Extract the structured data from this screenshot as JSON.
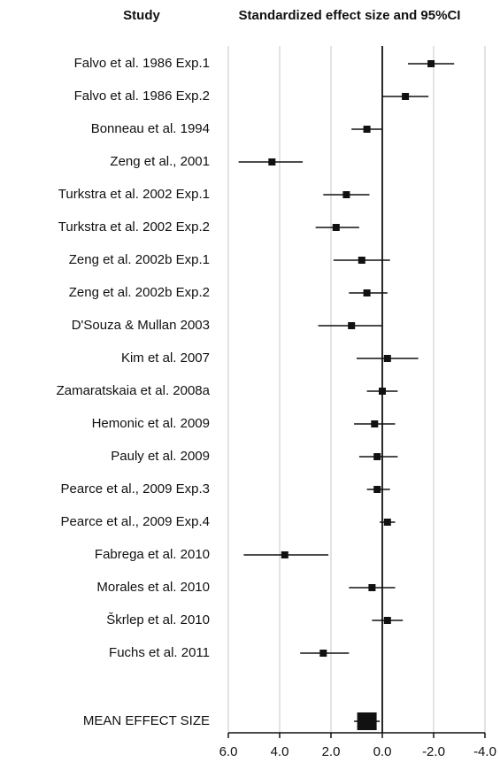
{
  "chart_data": {
    "type": "forest",
    "x_header": "Standardized effect size and 95%CI",
    "y_header": "Study",
    "categories": [
      "Falvo et al. 1986 Exp.1",
      "Falvo et al. 1986 Exp.2",
      "Bonneau et al. 1994",
      "Zeng et al., 2001",
      "Turkstra et al. 2002 Exp.1",
      "Turkstra et al. 2002 Exp.2",
      "Zeng et al. 2002b Exp.1",
      "Zeng et al. 2002b Exp.2",
      "D'Souza & Mullan 2003",
      "Kim et al. 2007",
      "Zamaratskaia et al. 2008a",
      "Hemonic et al. 2009",
      "Pauly et al. 2009",
      "Pearce et al., 2009 Exp.3",
      "Pearce et al., 2009 Exp.4",
      "Fabrega et al. 2010",
      "Morales et al. 2010",
      "Škrlep et al. 2010",
      "Fuchs et al. 2011"
    ],
    "values": [
      -1.9,
      -0.9,
      0.6,
      4.3,
      1.4,
      1.8,
      0.8,
      0.6,
      1.2,
      -0.2,
      0.0,
      0.3,
      0.2,
      0.2,
      -0.2,
      3.8,
      0.4,
      -0.2,
      2.3
    ],
    "ci_lower": [
      -2.8,
      -1.8,
      0.0,
      3.1,
      0.5,
      0.9,
      -0.3,
      -0.2,
      0.0,
      -1.4,
      -0.6,
      -0.5,
      -0.6,
      -0.3,
      -0.5,
      2.1,
      -0.5,
      -0.8,
      1.3
    ],
    "ci_upper": [
      -1.0,
      0.0,
      1.2,
      5.6,
      2.3,
      2.6,
      1.9,
      1.3,
      2.5,
      1.0,
      0.6,
      1.1,
      0.9,
      0.6,
      0.1,
      5.4,
      1.3,
      0.4,
      3.2
    ],
    "summary": {
      "label": "MEAN EFFECT SIZE",
      "value": 0.6,
      "ci_lower": 0.1,
      "ci_upper": 1.1
    },
    "color": "#111111",
    "xlim": [
      6.0,
      -4.0
    ],
    "xticks": [
      {
        "value": 6.0,
        "label": "6.0"
      },
      {
        "value": 4.0,
        "label": "4.0"
      },
      {
        "value": 2.0,
        "label": "2.0"
      },
      {
        "value": 0.0,
        "label": "0.0"
      },
      {
        "value": -2.0,
        "label": "-2.0"
      },
      {
        "value": -4.0,
        "label": "-4.0"
      }
    ],
    "grid": true
  }
}
